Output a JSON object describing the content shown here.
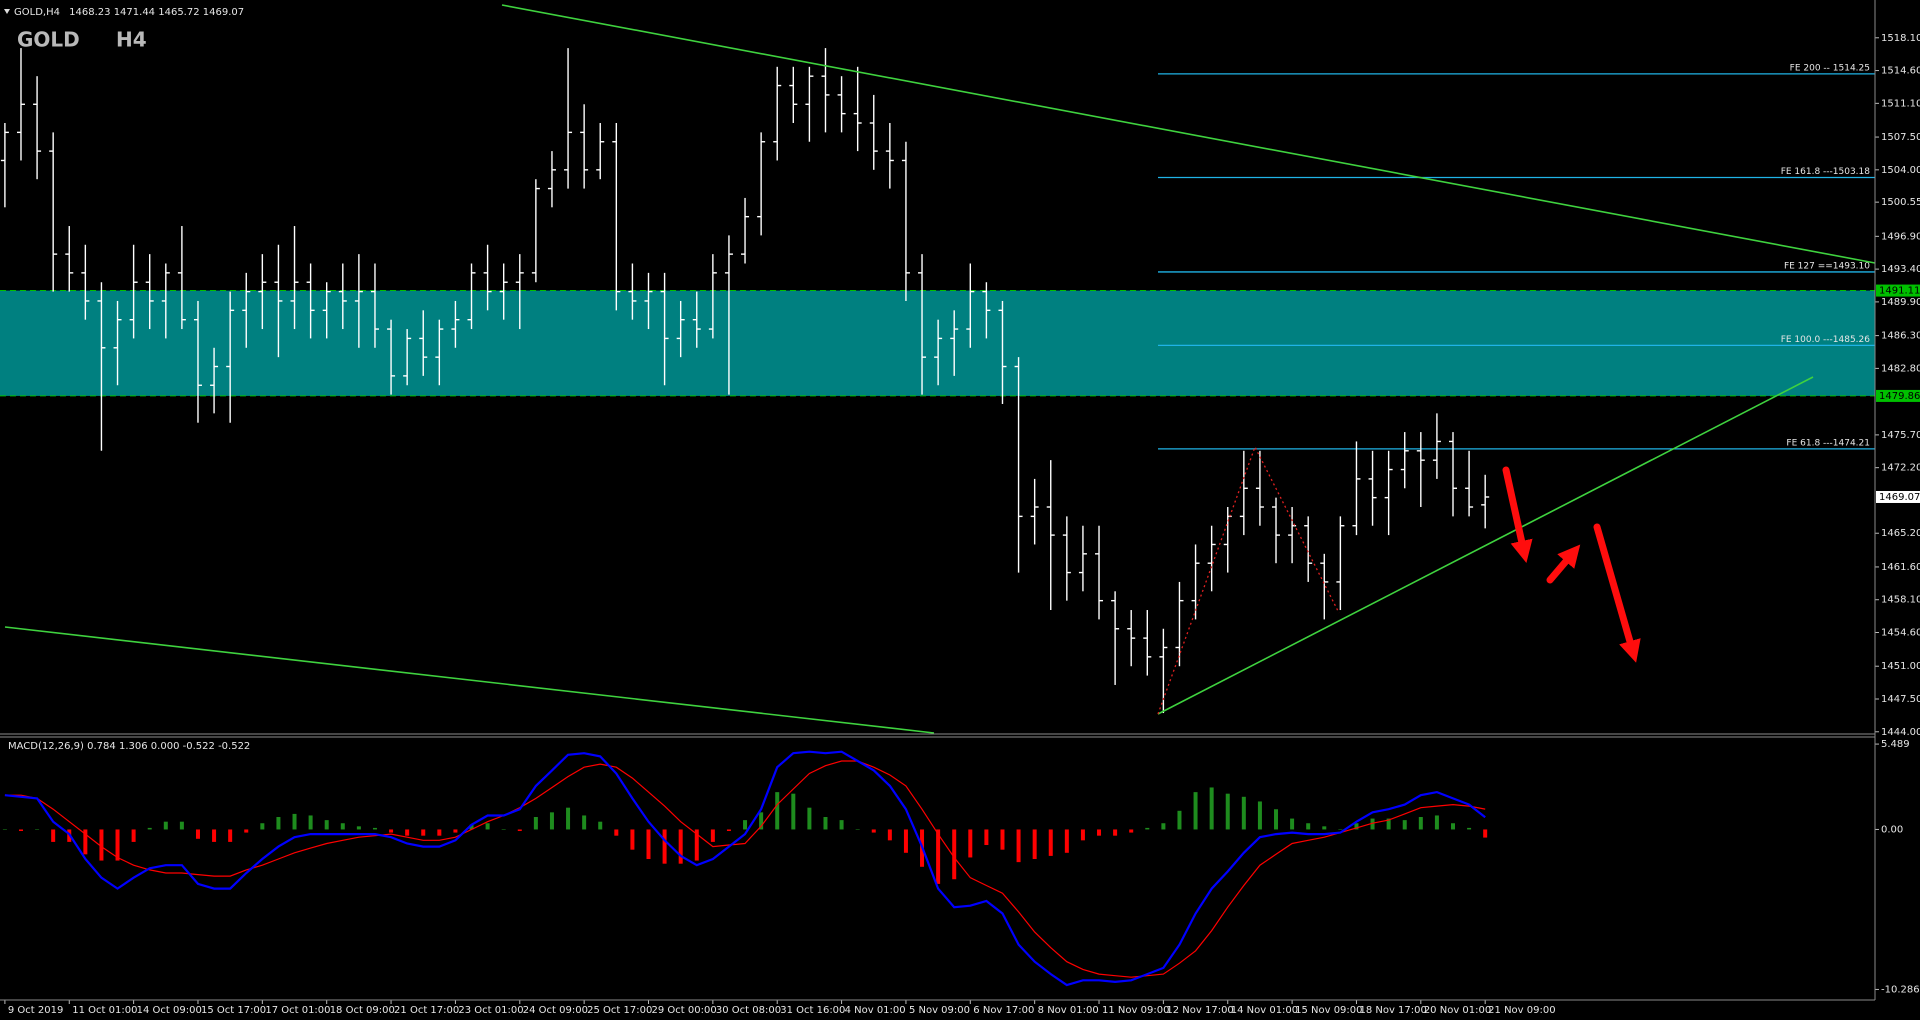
{
  "chart_data": [
    {
      "type": "ohlc",
      "symbol": "GOLD,H4",
      "title": "GOLD",
      "timeframe": "H4",
      "color": "#ffffff",
      "x": [
        "9 Oct 2019",
        null,
        null,
        null,
        "11 Oct 01:00",
        null,
        null,
        null,
        "14 Oct 09:00",
        null,
        null,
        null,
        "15 Oct 17:00",
        null,
        null,
        null,
        "17 Oct 01:00",
        null,
        null,
        null,
        "18 Oct 09:00",
        null,
        null,
        null,
        "21 Oct 17:00",
        null,
        null,
        null,
        "23 Oct 01:00",
        null,
        null,
        null,
        "24 Oct 09:00",
        null,
        null,
        null,
        "25 Oct 17:00",
        null,
        null,
        null,
        "29 Oct 00:00",
        null,
        null,
        null,
        "30 Oct 08:00",
        null,
        null,
        null,
        "31 Oct 16:00",
        null,
        null,
        null,
        "4 Nov 01:00",
        null,
        null,
        null,
        "5 Nov 09:00",
        null,
        null,
        null,
        "6 Nov 17:00",
        null,
        null,
        null,
        "8 Nov 01:00",
        null,
        null,
        null,
        "11 Nov 09:00",
        null,
        null,
        null,
        "12 Nov 17:00",
        null,
        null,
        null,
        "14 Nov 01:00",
        null,
        null,
        null,
        "15 Nov 09:00",
        null,
        null,
        null,
        "18 Nov 17:00",
        null,
        null,
        null,
        "20 Nov 01:00",
        null,
        null,
        null,
        "21 Nov 09:00"
      ],
      "open": [
        1505,
        1508,
        1511,
        1506,
        1495,
        1493,
        1490,
        1485,
        1488,
        1492,
        1490,
        1493,
        1488,
        1481,
        1483,
        1489,
        1491,
        1492,
        1490,
        1492,
        1489,
        1491,
        1490,
        1491,
        1487,
        1482,
        1486,
        1484,
        1487,
        1488,
        1493,
        1491,
        1492,
        1493,
        1502,
        1504,
        1508,
        1504,
        1507,
        1491,
        1490,
        1491,
        1486,
        1488,
        1487,
        1493,
        1495,
        1499,
        1507,
        1513,
        1511,
        1514,
        1512,
        1510,
        1509,
        1506,
        1505,
        1493,
        1484,
        1486,
        1487,
        1491,
        1489,
        1483,
        1467,
        1468,
        1465,
        1461,
        1463,
        1458,
        1455,
        1454,
        1452,
        1453,
        1458,
        1462,
        1464,
        1467,
        1470,
        1468,
        1465,
        1466,
        1462,
        1460,
        1466,
        1471,
        1469,
        1472,
        1474,
        1473,
        1475,
        1470,
        1468.23
      ],
      "high": [
        1509,
        1517,
        1514,
        1508,
        1498,
        1496,
        1492,
        1490,
        1496,
        1495,
        1494,
        1498,
        1490,
        1485,
        1491,
        1493,
        1495,
        1496,
        1498,
        1494,
        1492,
        1494,
        1495,
        1494,
        1488,
        1487,
        1489,
        1488,
        1490,
        1494,
        1496,
        1494,
        1495,
        1503,
        1506,
        1517,
        1511,
        1509,
        1509,
        1494,
        1493,
        1493,
        1490,
        1491,
        1495,
        1497,
        1501,
        1508,
        1515,
        1515,
        1515,
        1517,
        1514,
        1515,
        1512,
        1509,
        1507,
        1495,
        1488,
        1489,
        1494,
        1492,
        1490,
        1484,
        1471,
        1473,
        1467,
        1466,
        1466,
        1459,
        1457,
        1457,
        1455,
        1460,
        1464,
        1466,
        1468,
        1474,
        1474,
        1469,
        1468,
        1467,
        1463,
        1467,
        1475,
        1474,
        1474,
        1476,
        1476,
        1478,
        1476,
        1474,
        1471.44
      ],
      "low": [
        1500,
        1505,
        1503,
        1491,
        1491,
        1488,
        1474,
        1481,
        1486,
        1487,
        1486,
        1487,
        1477,
        1478,
        1477,
        1485,
        1487,
        1484,
        1487,
        1486,
        1486,
        1487,
        1485,
        1485,
        1480,
        1481,
        1482,
        1481,
        1485,
        1487,
        1489,
        1488,
        1487,
        1492,
        1500,
        1502,
        1502,
        1503,
        1489,
        1488,
        1487,
        1481,
        1484,
        1485,
        1486,
        1480,
        1494,
        1497,
        1505,
        1509,
        1507,
        1508,
        1508,
        1506,
        1504,
        1502,
        1490,
        1480,
        1481,
        1482,
        1485,
        1486,
        1479,
        1461,
        1464,
        1457,
        1458,
        1459,
        1456,
        1449,
        1451,
        1450,
        1446,
        1451,
        1456,
        1459,
        1461,
        1465,
        1466,
        1462,
        1462,
        1460,
        1456,
        1457,
        1465,
        1466,
        1465,
        1470,
        1468,
        1471,
        1467,
        1467,
        1465.72
      ],
      "close": [
        1508,
        1511,
        1506,
        1495,
        1493,
        1490,
        1485,
        1488,
        1492,
        1490,
        1493,
        1488,
        1481,
        1483,
        1489,
        1491,
        1492,
        1490,
        1492,
        1489,
        1491,
        1490,
        1491,
        1487,
        1482,
        1486,
        1484,
        1487,
        1488,
        1493,
        1491,
        1492,
        1493,
        1502,
        1504,
        1508,
        1504,
        1507,
        1491,
        1490,
        1491,
        1486,
        1488,
        1487,
        1493,
        1495,
        1499,
        1507,
        1513,
        1511,
        1514,
        1512,
        1510,
        1509,
        1506,
        1505,
        1493,
        1484,
        1486,
        1487,
        1491,
        1489,
        1483,
        1467,
        1468,
        1465,
        1461,
        1463,
        1458,
        1455,
        1454,
        1452,
        1453,
        1458,
        1462,
        1464,
        1467,
        1470,
        1468,
        1465,
        1466,
        1462,
        1460,
        1466,
        1471,
        1469,
        1472,
        1474,
        1473,
        1475,
        1470,
        1468,
        1469.07
      ],
      "ylim": [
        1443.87,
        1521.6
      ],
      "yticks": [
        {
          "value": 1518.1,
          "label": "1518.10"
        },
        {
          "value": 1514.6,
          "label": "1514.60"
        },
        {
          "value": 1511.1,
          "label": "1511.10"
        },
        {
          "value": 1507.5,
          "label": "1507.50"
        },
        {
          "value": 1504,
          "label": "1504.00"
        },
        1500.55,
        {
          "value": 1496.9,
          "label": "1496.90"
        },
        {
          "value": 1493.4,
          "label": "1493.40"
        },
        {
          "value": 1489.9,
          "label": "1489.90"
        },
        {
          "value": 1486.3,
          "label": "1486.30"
        },
        {
          "value": 1482.8,
          "label": "1482.80"
        },
        {
          "value": 1475.7,
          "label": "1475.70"
        },
        {
          "value": 1472.2,
          "label": "1472.20"
        },
        {
          "value": 1465.2,
          "label": "1465.20"
        },
        {
          "value": 1461.6,
          "label": "1461.60"
        },
        {
          "value": 1458.1,
          "label": "1458.10"
        },
        {
          "value": 1454.6,
          "label": "1454.60"
        },
        {
          "value": 1451,
          "label": "1451.00"
        },
        {
          "value": 1447.5,
          "label": "1447.50"
        },
        {
          "value": 1444,
          "label": "1444.00"
        }
      ],
      "zone": {
        "top": 1491.11,
        "bottom": 1479.86,
        "color": "#008080",
        "line_color": "#00c000"
      },
      "fe_color": "#1fb3e6",
      "fe_levels": [
        {
          "label": "FE 200 -- 1514.25",
          "value": 1514.25
        },
        {
          "label": "FE 161.8 ---1503.18",
          "value": 1503.18
        },
        {
          "label": "FE 127 ==1493.10",
          "value": 1493.1
        },
        {
          "label": "FE 100.0 ---1485.26",
          "value": 1485.26
        },
        {
          "label": "FE 61.8 ---1474.21",
          "value": 1474.21
        }
      ]
    },
    {
      "type": "macd",
      "title": "MACD(12,26,9)",
      "readout_extra": "0.000",
      "histogram": {
        "up_color": "#1e8c1e",
        "down_color": "#ff0000",
        "values": [
          0,
          -0.1,
          0,
          -0.8,
          -0.8,
          -1.6,
          -2.0,
          -2.0,
          -0.8,
          0.1,
          0.5,
          0.5,
          -0.6,
          -0.8,
          -0.8,
          -0.2,
          0.4,
          0.8,
          1.0,
          0.9,
          0.6,
          0.4,
          0.2,
          0.1,
          -0.2,
          -0.4,
          -0.4,
          -0.4,
          -0.2,
          0.3,
          0.4,
          0,
          -0.1,
          0.8,
          1.1,
          1.4,
          0.9,
          0.5,
          -0.4,
          -1.3,
          -1.9,
          -2.2,
          -2.2,
          -2.0,
          -0.8,
          -0.1,
          0.6,
          1.1,
          2.4,
          2.3,
          1.4,
          0.8,
          0.6,
          0,
          -0.2,
          -0.7,
          -1.5,
          -2.4,
          -3.5,
          -3.2,
          -1.8,
          -1.0,
          -1.3,
          -2.1,
          -1.9,
          -1.7,
          -1.5,
          -0.7,
          -0.4,
          -0.4,
          -0.2,
          0.1,
          0.4,
          1.2,
          2.4,
          2.7,
          2.3,
          2.1,
          1.8,
          1.3,
          0.7,
          0.4,
          0.2,
          0,
          0.4,
          0.7,
          0.7,
          0.6,
          0.8,
          0.9,
          0.4,
          0.1,
          -0.522
        ]
      },
      "macd": {
        "color": "#0000ff",
        "values": [
          2.2,
          2.1,
          2.0,
          0.5,
          -0.3,
          -1.9,
          -3.1,
          -3.8,
          -3.1,
          -2.5,
          -2.3,
          -2.3,
          -3.5,
          -3.8,
          -3.8,
          -2.8,
          -1.9,
          -1.1,
          -0.5,
          -0.3,
          -0.3,
          -0.3,
          -0.3,
          -0.3,
          -0.5,
          -0.9,
          -1.1,
          -1.1,
          -0.7,
          0.3,
          0.9,
          0.9,
          1.3,
          2.8,
          3.8,
          4.8,
          4.9,
          4.7,
          3.6,
          2.0,
          0.5,
          -0.7,
          -1.7,
          -2.3,
          -1.9,
          -1.1,
          -0.3,
          1.3,
          4.0,
          4.9,
          5.0,
          4.9,
          5.0,
          4.4,
          3.8,
          2.8,
          1.3,
          -1.1,
          -3.8,
          -5.0,
          -4.9,
          -4.6,
          -5.4,
          -7.4,
          -8.5,
          -9.3,
          -10.0,
          -9.7,
          -9.7,
          -9.8,
          -9.7,
          -9.3,
          -8.9,
          -7.4,
          -5.4,
          -3.8,
          -2.7,
          -1.5,
          -0.5,
          -0.3,
          -0.2,
          -0.3,
          -0.3,
          -0.2,
          0.5,
          1.1,
          1.3,
          1.6,
          2.2,
          2.4,
          2.0,
          1.6,
          0.784
        ]
      },
      "signal": {
        "color": "#ff0000",
        "values": [
          2.2,
          2.2,
          2.0,
          1.3,
          0.5,
          -0.3,
          -1.1,
          -1.8,
          -2.3,
          -2.6,
          -2.8,
          -2.8,
          -2.9,
          -3.0,
          -3.0,
          -2.6,
          -2.3,
          -1.9,
          -1.5,
          -1.2,
          -0.9,
          -0.7,
          -0.5,
          -0.4,
          -0.3,
          -0.5,
          -0.7,
          -0.7,
          -0.5,
          0.0,
          0.5,
          0.9,
          1.4,
          2.0,
          2.7,
          3.4,
          4.0,
          4.2,
          4.0,
          3.3,
          2.4,
          1.5,
          0.5,
          -0.3,
          -1.1,
          -1.0,
          -0.9,
          0.2,
          1.6,
          2.6,
          3.6,
          4.1,
          4.4,
          4.4,
          4.0,
          3.5,
          2.8,
          1.3,
          -0.3,
          -1.8,
          -3.1,
          -3.6,
          -4.1,
          -5.3,
          -6.6,
          -7.6,
          -8.5,
          -9.0,
          -9.3,
          -9.4,
          -9.5,
          -9.4,
          -9.3,
          -8.6,
          -7.8,
          -6.5,
          -5.0,
          -3.6,
          -2.3,
          -1.6,
          -0.9,
          -0.7,
          -0.5,
          -0.2,
          0.1,
          0.4,
          0.6,
          1.0,
          1.4,
          1.5,
          1.6,
          1.5,
          1.306
        ]
      },
      "ylim": [
        -10.9,
        5.88
      ],
      "yticks": [
        5.489,
        {
          "value": 0,
          "label": "0.00"
        },
        -10.286
      ]
    }
  ]
}
